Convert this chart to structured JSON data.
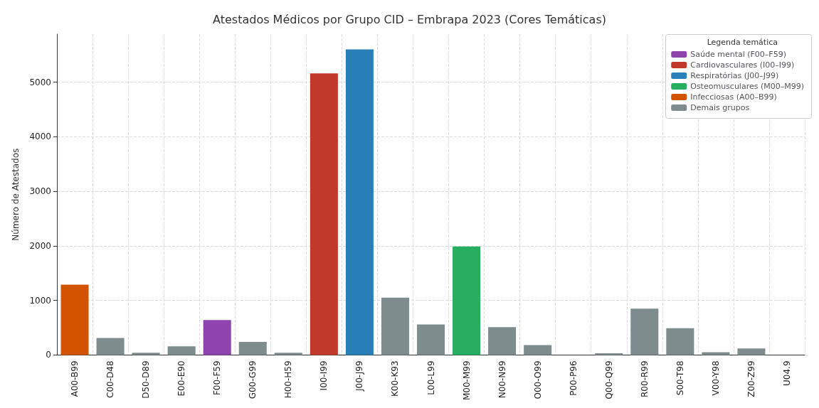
{
  "chart_data": {
    "type": "bar",
    "title": "Atestados Médicos por Grupo CID – Embrapa 2023 (Cores Temáticas)",
    "ylabel": "Número de Atestados",
    "legend_title": "Legenda temática",
    "categories": [
      "A00-B99",
      "C00-D48",
      "D50-D89",
      "E00-E90",
      "F00-F59",
      "G00-G99",
      "H00-H59",
      "I00-I99",
      "J00-J99",
      "K00-K93",
      "L00-L99",
      "M00-M99",
      "N00-N99",
      "O00-O99",
      "P00-P96",
      "Q00-Q99",
      "R00-R99",
      "S00-T98",
      "V00-Y98",
      "Z00-Z99",
      "U04.9"
    ],
    "series": [
      {
        "name": "Saúde mental (F00–F59)",
        "color": "#8e44ad",
        "values": [
          null,
          null,
          null,
          null,
          640,
          null,
          null,
          null,
          null,
          null,
          null,
          null,
          null,
          null,
          null,
          null,
          null,
          null,
          null,
          null,
          null
        ]
      },
      {
        "name": "Cardiovasculares (I00–I99)",
        "color": "#c0392b",
        "values": [
          null,
          null,
          null,
          null,
          null,
          null,
          null,
          5160,
          null,
          null,
          null,
          null,
          null,
          null,
          null,
          null,
          null,
          null,
          null,
          null,
          null
        ]
      },
      {
        "name": "Respiratórias (J00–J99)",
        "color": "#2980b9",
        "values": [
          null,
          null,
          null,
          null,
          null,
          null,
          null,
          null,
          5600,
          null,
          null,
          null,
          null,
          null,
          null,
          null,
          null,
          null,
          null,
          null,
          null
        ]
      },
      {
        "name": "Osteomusculares (M00–M99)",
        "color": "#27ae60",
        "values": [
          null,
          null,
          null,
          null,
          null,
          null,
          null,
          null,
          null,
          null,
          null,
          1990,
          null,
          null,
          null,
          null,
          null,
          null,
          null,
          null,
          null
        ]
      },
      {
        "name": "Infecciosas (A00–B99)",
        "color": "#d35400",
        "values": [
          1290,
          null,
          null,
          null,
          null,
          null,
          null,
          null,
          null,
          null,
          null,
          null,
          null,
          null,
          null,
          null,
          null,
          null,
          null,
          null,
          null
        ]
      },
      {
        "name": "Demais grupos",
        "color": "#7f8c8d",
        "values": [
          null,
          310,
          40,
          160,
          null,
          240,
          40,
          null,
          null,
          1050,
          560,
          null,
          510,
          180,
          0,
          30,
          850,
          490,
          50,
          120,
          0
        ]
      }
    ],
    "ylim": [
      0,
      5880
    ],
    "yticks": [
      0,
      1000,
      2000,
      3000,
      4000,
      5000
    ],
    "grid": true,
    "legend": "top right"
  }
}
